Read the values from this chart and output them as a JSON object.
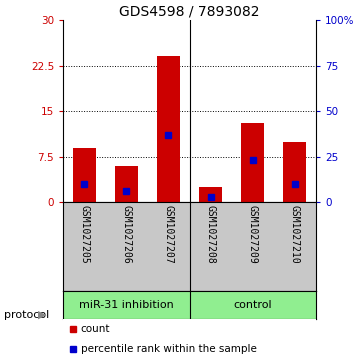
{
  "title": "GDS4598 / 7893082",
  "samples": [
    "GSM1027205",
    "GSM1027206",
    "GSM1027207",
    "GSM1027208",
    "GSM1027209",
    "GSM1027210"
  ],
  "counts": [
    9.0,
    6.0,
    24.0,
    2.5,
    13.0,
    10.0
  ],
  "percentile_ranks": [
    10.0,
    6.0,
    37.0,
    3.0,
    23.0,
    10.0
  ],
  "left_ylim": [
    0,
    30
  ],
  "left_yticks": [
    0,
    7.5,
    15,
    22.5,
    30
  ],
  "left_yticklabels": [
    "0",
    "7.5",
    "15",
    "22.5",
    "30"
  ],
  "right_yticks": [
    0,
    25,
    50,
    75,
    100
  ],
  "right_yticklabels": [
    "0",
    "25",
    "50",
    "75",
    "100%"
  ],
  "bar_color": "#CC0000",
  "blue_color": "#0000CC",
  "gray_bg": "#C8C8C8",
  "green_bg": "#90EE90",
  "title_fontsize": 10,
  "tick_fontsize": 7.5,
  "sample_fontsize": 7,
  "group_fontsize": 8,
  "legend_fontsize": 7.5,
  "group_split": 2.5,
  "group1_label": "miR-31 inhibition",
  "group2_label": "control",
  "protocol_label": "protocol"
}
